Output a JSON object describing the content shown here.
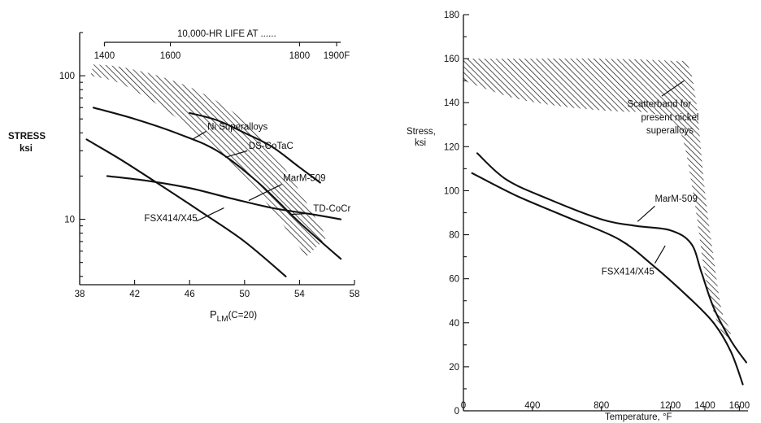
{
  "chart_data": [
    {
      "type": "line",
      "title": "",
      "xlabel": "P",
      "xlabel_sub": "LM",
      "xlabel_suffix": "(C=20)",
      "ylabel": "STRESS",
      "ylabel_unit": "ksi",
      "x_ticks": [
        "38",
        "42",
        "46",
        "50",
        "54",
        "58"
      ],
      "xlim": [
        38,
        58
      ],
      "y_scale": "log",
      "ylim": [
        3.5,
        200
      ],
      "y_tick_labels": [
        {
          "value": 100,
          "label": "100"
        },
        {
          "value": 10,
          "label": "10"
        }
      ],
      "secondary_axis": {
        "title": "10,000-HR LIFE AT ......",
        "ticks": [
          {
            "p": 39.8,
            "label": "1400"
          },
          {
            "p": 44.6,
            "label": "1600"
          },
          {
            "p": 54.0,
            "label": "1800"
          },
          {
            "p": 56.7,
            "label": "1900F"
          }
        ]
      },
      "band": {
        "name": "Ni Superalloys",
        "upper": [
          [
            39.0,
            120
          ],
          [
            41.0,
            115
          ],
          [
            44.0,
            98
          ],
          [
            47.0,
            75
          ],
          [
            50.0,
            48
          ],
          [
            53.0,
            22
          ],
          [
            56.0,
            7.5
          ]
        ],
        "lower": [
          [
            38.8,
            100
          ],
          [
            41.0,
            88
          ],
          [
            44.0,
            60
          ],
          [
            47.0,
            36
          ],
          [
            50.0,
            20
          ],
          [
            52.5,
            10
          ],
          [
            54.5,
            5.5
          ]
        ]
      },
      "series": [
        {
          "name": "Ni Superalloys",
          "points": [
            [
              46.0,
              55
            ],
            [
              48.0,
              49
            ],
            [
              50.0,
              40
            ],
            [
              52.0,
              32
            ],
            [
              54.0,
              23
            ],
            [
              55.5,
              18
            ]
          ]
        },
        {
          "name": "DS-CoTaC",
          "points": [
            [
              39.0,
              60
            ],
            [
              42.0,
              50
            ],
            [
              45.0,
              40
            ],
            [
              48.0,
              30
            ],
            [
              51.0,
              18
            ],
            [
              54.0,
              9.5
            ],
            [
              57.0,
              5.3
            ]
          ]
        },
        {
          "name": "MarM-509",
          "points": [
            [
              38.5,
              36
            ],
            [
              41.0,
              26
            ],
            [
              44.0,
              17
            ],
            [
              47.0,
              11
            ],
            [
              50.0,
              7
            ],
            [
              53.0,
              4
            ]
          ]
        },
        {
          "name": "TD-CoCr",
          "points": [
            [
              40.0,
              20
            ],
            [
              43.0,
              18.5
            ],
            [
              46.0,
              16.5
            ],
            [
              49.0,
              14
            ],
            [
              52.0,
              12
            ],
            [
              55.0,
              10.8
            ],
            [
              57.0,
              10
            ]
          ]
        }
      ],
      "annotations": [
        {
          "text": "Ni Superalloys",
          "x": 47.3,
          "y": 42
        },
        {
          "text": "DS-CoTaC",
          "x": 50.3,
          "y": 31
        },
        {
          "text": "MarM-509",
          "x": 52.8,
          "y": 18.5
        },
        {
          "text": "TD-CoCr",
          "x": 55.0,
          "y": 11.3
        },
        {
          "text": "FSX414/X45",
          "x": 42.7,
          "y": 9.7
        }
      ]
    },
    {
      "type": "line",
      "title": "",
      "xlabel": "Temperature, °F",
      "ylabel": "Stress,",
      "ylabel_unit": "ksi",
      "xlim": [
        0,
        1650
      ],
      "ylim": [
        0,
        180
      ],
      "x_ticks": [
        "0",
        "400",
        "800",
        "1200",
        "1400",
        "1600"
      ],
      "y_ticks": [
        "0",
        "20",
        "40",
        "60",
        "80",
        "100",
        "120",
        "140",
        "160",
        "180"
      ],
      "band": {
        "name": "Scatterband for present nickel superalloys",
        "upper": [
          [
            0,
            160
          ],
          [
            400,
            160
          ],
          [
            800,
            160
          ],
          [
            1200,
            159
          ],
          [
            1300,
            157
          ],
          [
            1350,
            140
          ],
          [
            1400,
            100
          ],
          [
            1450,
            70
          ],
          [
            1500,
            45
          ],
          [
            1560,
            36
          ]
        ],
        "lower": [
          [
            0,
            150
          ],
          [
            300,
            142
          ],
          [
            600,
            138
          ],
          [
            900,
            136
          ],
          [
            1100,
            135
          ],
          [
            1250,
            128
          ],
          [
            1330,
            100
          ],
          [
            1400,
            62
          ],
          [
            1450,
            45
          ],
          [
            1520,
            32
          ]
        ]
      },
      "series": [
        {
          "name": "MarM-509",
          "points": [
            [
              80,
              117
            ],
            [
              250,
              105
            ],
            [
              500,
              96
            ],
            [
              800,
              87
            ],
            [
              1000,
              84
            ],
            [
              1200,
              82
            ],
            [
              1320,
              76
            ],
            [
              1380,
              63
            ],
            [
              1450,
              47
            ],
            [
              1550,
              32
            ],
            [
              1640,
              22
            ]
          ]
        },
        {
          "name": "FSX414/X45",
          "points": [
            [
              50,
              108
            ],
            [
              300,
              98
            ],
            [
              600,
              88
            ],
            [
              900,
              78
            ],
            [
              1100,
              66
            ],
            [
              1300,
              52
            ],
            [
              1450,
              40
            ],
            [
              1550,
              27
            ],
            [
              1620,
              12
            ]
          ]
        }
      ],
      "annotations": [
        {
          "text": "Scatterband for",
          "x": 950,
          "y": 138
        },
        {
          "text": "present nickel",
          "x": 1030,
          "y": 132
        },
        {
          "text": "superalloys",
          "x": 1060,
          "y": 126
        },
        {
          "text": "MarM-509",
          "x": 1110,
          "y": 95
        },
        {
          "text": "FSX414/X45",
          "x": 800,
          "y": 62
        }
      ]
    }
  ]
}
